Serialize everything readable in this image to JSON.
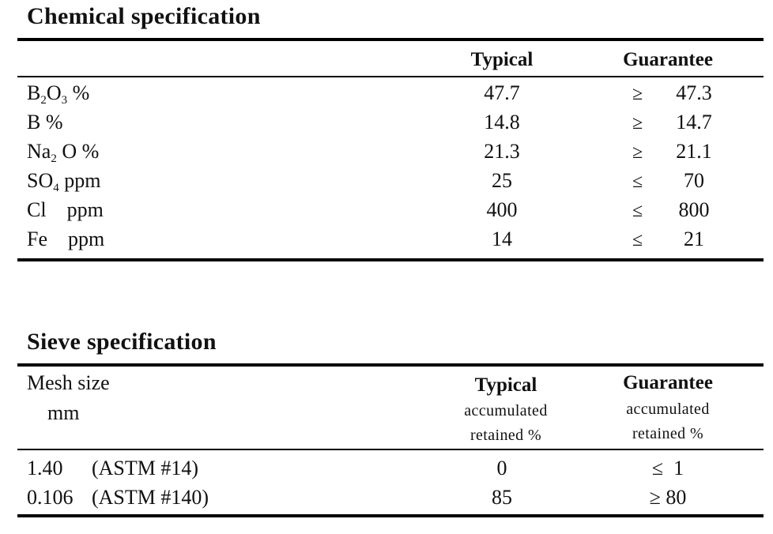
{
  "chemical": {
    "title": "Chemical specification",
    "col_typical": "Typical",
    "col_guarantee": "Guarantee",
    "rows": [
      {
        "param": "B2O3 %",
        "p1": "B",
        "s1": "2",
        "p2": "O",
        "s2": "3",
        "p3": " %",
        "typical": "47.7",
        "op": "≥",
        "guarantee": "47.3"
      },
      {
        "param": "B %",
        "p1": "B %",
        "s1": "",
        "p2": "",
        "s2": "",
        "p3": "",
        "typical": "14.8",
        "op": "≥",
        "guarantee": "14.7"
      },
      {
        "param": "Na2 O %",
        "p1": "Na",
        "s1": "2",
        "p2": " O %",
        "s2": "",
        "p3": "",
        "typical": "21.3",
        "op": "≥",
        "guarantee": "21.1"
      },
      {
        "param": "SO4 ppm",
        "p1": "SO",
        "s1": "4",
        "p2": " ppm",
        "s2": "",
        "p3": "",
        "typical": "25",
        "op": "≤",
        "guarantee": "70"
      },
      {
        "param": "Cl    ppm",
        "p1": "Cl    ppm",
        "s1": "",
        "p2": "",
        "s2": "",
        "p3": "",
        "typical": "400",
        "op": "≤",
        "guarantee": "800"
      },
      {
        "param": "Fe    ppm",
        "p1": "Fe    ppm",
        "s1": "",
        "p2": "",
        "s2": "",
        "p3": "",
        "typical": "14",
        "op": "≤",
        "guarantee": "21"
      }
    ]
  },
  "sieve": {
    "title": "Sieve specification",
    "col_mesh": "Mesh size",
    "col_mesh_unit": "mm",
    "col_typical": "Typical",
    "col_guarantee": "Guarantee",
    "sub_line1": "accumulated",
    "sub_line2": "retained %",
    "rows": [
      {
        "size": "1.40",
        "astm": "(ASTM #14)",
        "typical": "0",
        "guarantee": "≤  1"
      },
      {
        "size": "0.106",
        "astm": "(ASTM #140)",
        "typical": "85",
        "guarantee": "≥ 80"
      }
    ]
  }
}
